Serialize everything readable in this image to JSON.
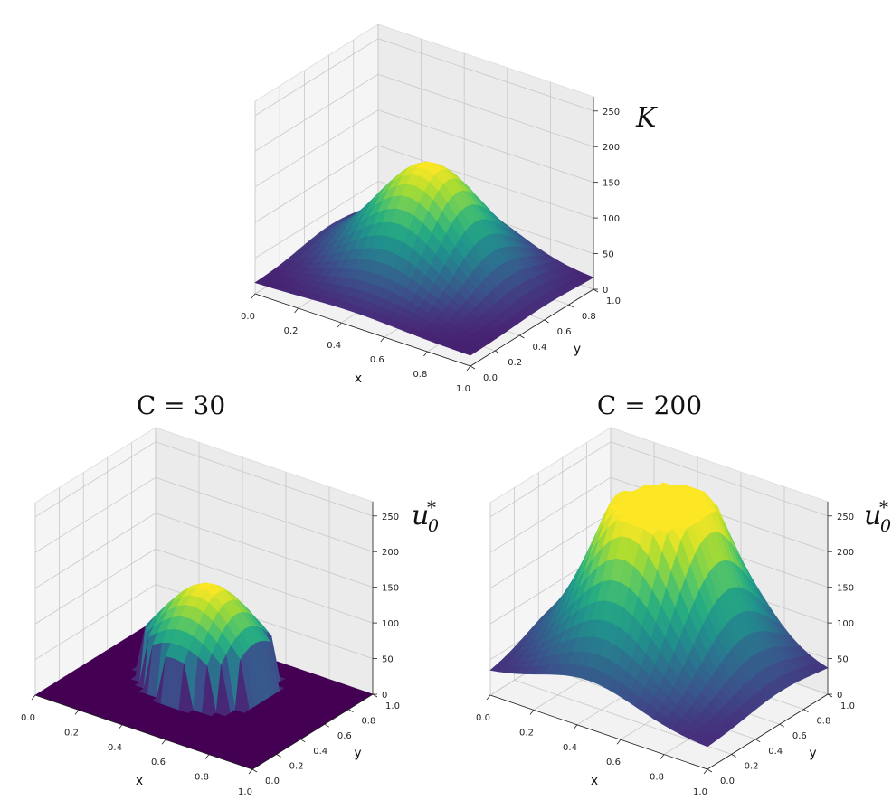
{
  "chart_data": [
    {
      "type": "surface3d",
      "title": "",
      "xlabel": "x",
      "ylabel": "y",
      "zlabel": "K",
      "xlim": [
        0.0,
        1.0
      ],
      "ylim": [
        0.0,
        1.0
      ],
      "zlim": [
        0,
        270
      ],
      "x_ticks": [
        "0.0",
        "0.2",
        "0.4",
        "0.6",
        "0.8",
        "1.0"
      ],
      "y_ticks": [
        "0.0",
        "0.2",
        "0.4",
        "0.6",
        "0.8",
        "1.0"
      ],
      "z_ticks": [
        "0",
        "50",
        "100",
        "150",
        "200",
        "250"
      ],
      "colormap": "viridis",
      "grid": true,
      "surface": {
        "description_values": "smooth bump, max ~160 near (0.5, 0.6), edges ~20",
        "peak": 160,
        "peak_center": [
          0.5,
          0.6
        ],
        "base": 15
      }
    },
    {
      "type": "surface3d",
      "title": "C = 30",
      "xlabel": "x",
      "ylabel": "y",
      "zlabel": "u0*",
      "xlim": [
        0.0,
        1.0
      ],
      "ylim": [
        0.0,
        1.0
      ],
      "zlim": [
        0,
        270
      ],
      "x_ticks": [
        "0.0",
        "0.2",
        "0.4",
        "0.6",
        "0.8",
        "1.0"
      ],
      "y_ticks": [
        "0.0",
        "0.2",
        "0.4",
        "0.6",
        "0.8",
        "1.0"
      ],
      "z_ticks": [
        "0",
        "50",
        "100",
        "150",
        "200",
        "250"
      ],
      "colormap": "viridis",
      "grid": true,
      "surface": {
        "peak": 130,
        "peak_center": [
          0.5,
          0.6
        ],
        "clip_threshold": 60,
        "clip_value": 0
      }
    },
    {
      "type": "surface3d",
      "title": "C = 200",
      "xlabel": "x",
      "ylabel": "y",
      "zlabel": "u0*",
      "xlim": [
        0.0,
        1.0
      ],
      "ylim": [
        0.0,
        1.0
      ],
      "zlim": [
        0,
        270
      ],
      "x_ticks": [
        "0.0",
        "0.2",
        "0.4",
        "0.6",
        "0.8",
        "1.0"
      ],
      "y_ticks": [
        "0.0",
        "0.2",
        "0.4",
        "0.6",
        "0.8",
        "1.0"
      ],
      "z_ticks": [
        "0",
        "50",
        "100",
        "150",
        "200",
        "250"
      ],
      "colormap": "viridis",
      "grid": true,
      "surface": {
        "peak": 250,
        "peak_center": [
          0.5,
          0.6
        ],
        "saturation": 240,
        "base": 40
      }
    }
  ],
  "labels": {
    "k_title": "K",
    "c30_title": "C = 30",
    "c200_title": "C = 200",
    "u_label": "u",
    "u_sub": "0",
    "u_sup": "*"
  }
}
